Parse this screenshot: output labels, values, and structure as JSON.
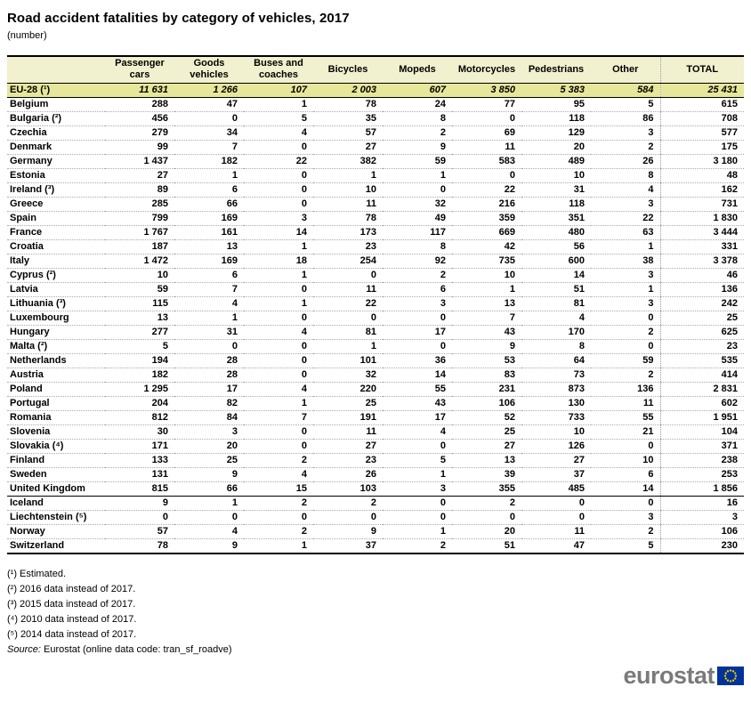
{
  "title": "Road accident fatalities by category of vehicles, 2017",
  "subtitle": "(number)",
  "chart_data": {
    "type": "table",
    "title": "Road accident fatalities by category of vehicles, 2017",
    "unit": "number",
    "columns": [
      "Passenger cars",
      "Goods vehicles",
      "Buses and coaches",
      "Bicycles",
      "Mopeds",
      "Motorcycles",
      "Pedestrians",
      "Other",
      "TOTAL"
    ],
    "aggregate": {
      "label": "EU-28 (¹)",
      "values": [
        "11 631",
        "1 266",
        "107",
        "2 003",
        "607",
        "3 850",
        "5 383",
        "584",
        "25 431"
      ]
    },
    "rows": [
      {
        "label": "Belgium",
        "group": "eu",
        "values": [
          "288",
          "47",
          "1",
          "78",
          "24",
          "77",
          "95",
          "5",
          "615"
        ]
      },
      {
        "label": "Bulgaria (²)",
        "group": "eu",
        "values": [
          "456",
          "0",
          "5",
          "35",
          "8",
          "0",
          "118",
          "86",
          "708"
        ]
      },
      {
        "label": "Czechia",
        "group": "eu",
        "values": [
          "279",
          "34",
          "4",
          "57",
          "2",
          "69",
          "129",
          "3",
          "577"
        ]
      },
      {
        "label": "Denmark",
        "group": "eu",
        "values": [
          "99",
          "7",
          "0",
          "27",
          "9",
          "11",
          "20",
          "2",
          "175"
        ]
      },
      {
        "label": "Germany",
        "group": "eu",
        "values": [
          "1 437",
          "182",
          "22",
          "382",
          "59",
          "583",
          "489",
          "26",
          "3 180"
        ]
      },
      {
        "label": "Estonia",
        "group": "eu",
        "values": [
          "27",
          "1",
          "0",
          "1",
          "1",
          "0",
          "10",
          "8",
          "48"
        ]
      },
      {
        "label": "Ireland (³)",
        "group": "eu",
        "values": [
          "89",
          "6",
          "0",
          "10",
          "0",
          "22",
          "31",
          "4",
          "162"
        ]
      },
      {
        "label": "Greece",
        "group": "eu",
        "values": [
          "285",
          "66",
          "0",
          "11",
          "32",
          "216",
          "118",
          "3",
          "731"
        ]
      },
      {
        "label": "Spain",
        "group": "eu",
        "values": [
          "799",
          "169",
          "3",
          "78",
          "49",
          "359",
          "351",
          "22",
          "1 830"
        ]
      },
      {
        "label": "France",
        "group": "eu",
        "values": [
          "1 767",
          "161",
          "14",
          "173",
          "117",
          "669",
          "480",
          "63",
          "3 444"
        ]
      },
      {
        "label": "Croatia",
        "group": "eu",
        "values": [
          "187",
          "13",
          "1",
          "23",
          "8",
          "42",
          "56",
          "1",
          "331"
        ]
      },
      {
        "label": "Italy",
        "group": "eu",
        "values": [
          "1 472",
          "169",
          "18",
          "254",
          "92",
          "735",
          "600",
          "38",
          "3 378"
        ]
      },
      {
        "label": "Cyprus (²)",
        "group": "eu",
        "values": [
          "10",
          "6",
          "1",
          "0",
          "2",
          "10",
          "14",
          "3",
          "46"
        ]
      },
      {
        "label": "Latvia",
        "group": "eu",
        "values": [
          "59",
          "7",
          "0",
          "11",
          "6",
          "1",
          "51",
          "1",
          "136"
        ]
      },
      {
        "label": "Lithuania (³)",
        "group": "eu",
        "values": [
          "115",
          "4",
          "1",
          "22",
          "3",
          "13",
          "81",
          "3",
          "242"
        ]
      },
      {
        "label": "Luxembourg",
        "group": "eu",
        "values": [
          "13",
          "1",
          "0",
          "0",
          "0",
          "7",
          "4",
          "0",
          "25"
        ]
      },
      {
        "label": "Hungary",
        "group": "eu",
        "values": [
          "277",
          "31",
          "4",
          "81",
          "17",
          "43",
          "170",
          "2",
          "625"
        ]
      },
      {
        "label": "Malta (²)",
        "group": "eu",
        "values": [
          "5",
          "0",
          "0",
          "1",
          "0",
          "9",
          "8",
          "0",
          "23"
        ]
      },
      {
        "label": "Netherlands",
        "group": "eu",
        "values": [
          "194",
          "28",
          "0",
          "101",
          "36",
          "53",
          "64",
          "59",
          "535"
        ]
      },
      {
        "label": "Austria",
        "group": "eu",
        "values": [
          "182",
          "28",
          "0",
          "32",
          "14",
          "83",
          "73",
          "2",
          "414"
        ]
      },
      {
        "label": "Poland",
        "group": "eu",
        "values": [
          "1 295",
          "17",
          "4",
          "220",
          "55",
          "231",
          "873",
          "136",
          "2 831"
        ]
      },
      {
        "label": "Portugal",
        "group": "eu",
        "values": [
          "204",
          "82",
          "1",
          "25",
          "43",
          "106",
          "130",
          "11",
          "602"
        ]
      },
      {
        "label": "Romania",
        "group": "eu",
        "values": [
          "812",
          "84",
          "7",
          "191",
          "17",
          "52",
          "733",
          "55",
          "1 951"
        ]
      },
      {
        "label": "Slovenia",
        "group": "eu",
        "values": [
          "30",
          "3",
          "0",
          "11",
          "4",
          "25",
          "10",
          "21",
          "104"
        ]
      },
      {
        "label": "Slovakia (⁴)",
        "group": "eu",
        "values": [
          "171",
          "20",
          "0",
          "27",
          "0",
          "27",
          "126",
          "0",
          "371"
        ]
      },
      {
        "label": "Finland",
        "group": "eu",
        "values": [
          "133",
          "25",
          "2",
          "23",
          "5",
          "13",
          "27",
          "10",
          "238"
        ]
      },
      {
        "label": "Sweden",
        "group": "eu",
        "values": [
          "131",
          "9",
          "4",
          "26",
          "1",
          "39",
          "37",
          "6",
          "253"
        ]
      },
      {
        "label": "United Kingdom",
        "group": "eu",
        "values": [
          "815",
          "66",
          "15",
          "103",
          "3",
          "355",
          "485",
          "14",
          "1 856"
        ]
      },
      {
        "label": "Iceland",
        "group": "efta",
        "values": [
          "9",
          "1",
          "2",
          "2",
          "0",
          "2",
          "0",
          "0",
          "16"
        ]
      },
      {
        "label": "Liechtenstein (⁵)",
        "group": "efta",
        "values": [
          "0",
          "0",
          "0",
          "0",
          "0",
          "0",
          "0",
          "3",
          "3"
        ]
      },
      {
        "label": "Norway",
        "group": "efta",
        "values": [
          "57",
          "4",
          "2",
          "9",
          "1",
          "20",
          "11",
          "2",
          "106"
        ]
      },
      {
        "label": "Switzerland",
        "group": "efta",
        "values": [
          "78",
          "9",
          "1",
          "37",
          "2",
          "51",
          "47",
          "5",
          "230"
        ]
      }
    ],
    "footnotes": [
      "(¹) Estimated.",
      "(²) 2016 data instead of 2017.",
      "(³) 2015 data instead of 2017.",
      "(⁴) 2010 data instead of 2017.",
      "(⁵) 2014 data instead of 2017."
    ],
    "source": "Eurostat (online data code: tran_sf_roadve)"
  },
  "footer": {
    "source_label": "Source:",
    "source_text": "Eurostat (online data code: tran_sf_roadve)"
  },
  "logo": {
    "text": "eurostat"
  },
  "colors": {
    "header_bg": "#F1F1CF",
    "aggregate_bg": "#E7E79C",
    "logo_gray": "#7A7A7A",
    "flag_blue": "#003399",
    "star_yellow": "#FFCC00"
  }
}
